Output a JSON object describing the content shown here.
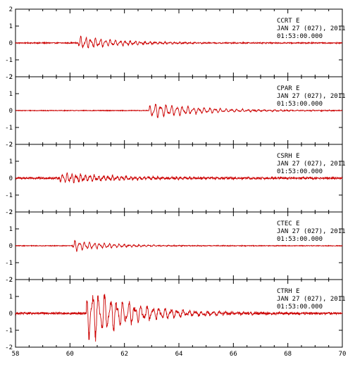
{
  "chart_data": {
    "type": "line",
    "x_range": [
      58,
      70
    ],
    "x_ticks": [
      58,
      60,
      62,
      64,
      66,
      68,
      70
    ],
    "y_range": [
      -2,
      2
    ],
    "y_ticks": [
      -2,
      -1,
      0,
      1,
      2
    ],
    "grid": false,
    "line_color": "#cc0000",
    "panels": [
      {
        "station": "CCRT",
        "component": "E",
        "date_line": "JAN 27 (027), 2011",
        "time_line": "01:53:00.000",
        "onset": 60.3,
        "peak": 0.4,
        "decay": 1.6,
        "freq": 5.5,
        "noise": 0.03
      },
      {
        "station": "CPAR",
        "component": "E",
        "date_line": "JAN 27 (027), 2011",
        "time_line": "01:53:00.000",
        "onset": 62.9,
        "peak": 0.5,
        "decay": 1.8,
        "freq": 5.0,
        "noise": 0.02
      },
      {
        "station": "CSRH",
        "component": "E",
        "date_line": "JAN 27 (027), 2011",
        "time_line": "01:53:00.000",
        "onset": 59.6,
        "peak": 0.3,
        "decay": 2.5,
        "freq": 6.0,
        "noise": 0.06
      },
      {
        "station": "CTEC",
        "component": "E",
        "date_line": "JAN 27 (027), 2011",
        "time_line": "01:53:00.000",
        "onset": 60.1,
        "peak": 0.35,
        "decay": 1.3,
        "freq": 5.5,
        "noise": 0.02
      },
      {
        "station": "CTRH",
        "component": "E",
        "date_line": "JAN 27 (027), 2011",
        "time_line": "01:53:00.000",
        "onset": 60.6,
        "peak": 1.8,
        "decay": 1.6,
        "freq": 4.5,
        "noise": 0.06
      }
    ]
  }
}
